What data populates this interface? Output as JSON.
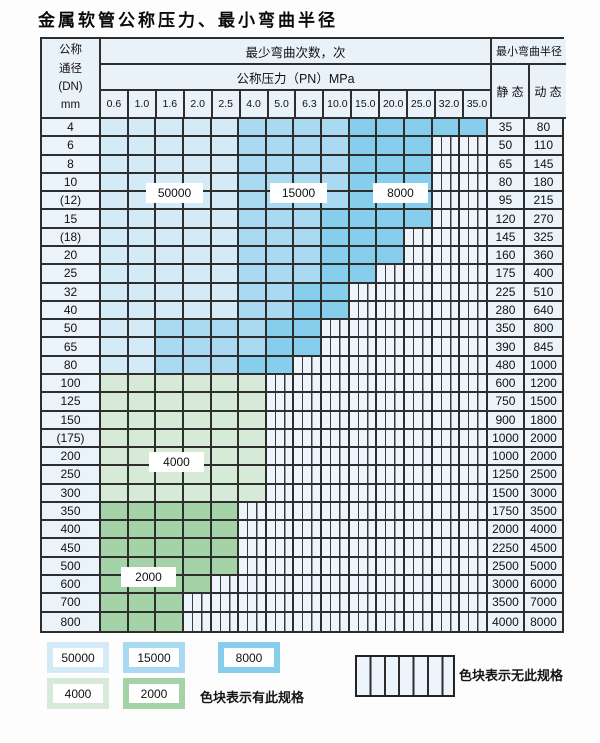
{
  "title": "金属软管公称压力、最小弯曲半径",
  "colors": {
    "50000": "#d5eaf7",
    "15000": "#aadaf1",
    "8000": "#87ceec",
    "4000": "#d7e9d7",
    "2000": "#a4d3a7",
    "hatch_bg": "#edf4fb",
    "border": "#2e2e2e",
    "header_bg": "#e9f1f9",
    "light_bg": "#eaf2fa"
  },
  "table": {
    "header": {
      "dn_lines": [
        "公称",
        "通径",
        "(DN)",
        "mm"
      ],
      "bend_cycles": "最少弯曲次数，次",
      "pressure": "公称压力（PN）MPa",
      "min_radius": "最小弯曲半径",
      "static": "静 态",
      "dynamic": "动 态",
      "pressures": [
        "0.6",
        "1.0",
        "1.6",
        "2.0",
        "2.5",
        "4.0",
        "5.0",
        "6.3",
        "10.0",
        "15.0",
        "20.0",
        "25.0",
        "32.0",
        "35.0"
      ]
    },
    "grade_order": [
      "50000",
      "15000",
      "8000",
      "4000",
      "2000",
      "none"
    ],
    "rows": [
      {
        "dn": "4",
        "counts": [
          5,
          4,
          5,
          0,
          0,
          0
        ],
        "static": "35",
        "dynamic": "80"
      },
      {
        "dn": "6",
        "counts": [
          5,
          4,
          3,
          0,
          0,
          2
        ],
        "static": "50",
        "dynamic": "110"
      },
      {
        "dn": "8",
        "counts": [
          5,
          4,
          3,
          0,
          0,
          2
        ],
        "static": "65",
        "dynamic": "145"
      },
      {
        "dn": "10",
        "counts": [
          5,
          4,
          3,
          0,
          0,
          2
        ],
        "static": "80",
        "dynamic": "180"
      },
      {
        "dn": "(12)",
        "counts": [
          5,
          4,
          3,
          0,
          0,
          2
        ],
        "static": "95",
        "dynamic": "215"
      },
      {
        "dn": "15",
        "counts": [
          5,
          3,
          4,
          0,
          0,
          2
        ],
        "static": "120",
        "dynamic": "270"
      },
      {
        "dn": "(18)",
        "counts": [
          5,
          3,
          3,
          0,
          0,
          3
        ],
        "static": "145",
        "dynamic": "325"
      },
      {
        "dn": "20",
        "counts": [
          5,
          3,
          3,
          0,
          0,
          3
        ],
        "static": "160",
        "dynamic": "360"
      },
      {
        "dn": "25",
        "counts": [
          5,
          3,
          2,
          0,
          0,
          4
        ],
        "static": "175",
        "dynamic": "400"
      },
      {
        "dn": "32",
        "counts": [
          5,
          2,
          2,
          0,
          0,
          5
        ],
        "static": "225",
        "dynamic": "510"
      },
      {
        "dn": "40",
        "counts": [
          5,
          2,
          2,
          0,
          0,
          5
        ],
        "static": "280",
        "dynamic": "640"
      },
      {
        "dn": "50",
        "counts": [
          2,
          4,
          2,
          0,
          0,
          6
        ],
        "static": "350",
        "dynamic": "800"
      },
      {
        "dn": "65",
        "counts": [
          2,
          4,
          2,
          0,
          0,
          6
        ],
        "static": "390",
        "dynamic": "845"
      },
      {
        "dn": "80",
        "counts": [
          2,
          3,
          2,
          0,
          0,
          7
        ],
        "static": "480",
        "dynamic": "1000"
      },
      {
        "dn": "100",
        "counts": [
          0,
          0,
          0,
          6,
          0,
          8
        ],
        "static": "600",
        "dynamic": "1200"
      },
      {
        "dn": "125",
        "counts": [
          0,
          0,
          0,
          6,
          0,
          8
        ],
        "static": "750",
        "dynamic": "1500"
      },
      {
        "dn": "150",
        "counts": [
          0,
          0,
          0,
          6,
          0,
          8
        ],
        "static": "900",
        "dynamic": "1800"
      },
      {
        "dn": "(175)",
        "counts": [
          0,
          0,
          0,
          6,
          0,
          8
        ],
        "static": "1000",
        "dynamic": "2000"
      },
      {
        "dn": "200",
        "counts": [
          0,
          0,
          0,
          6,
          0,
          8
        ],
        "static": "1000",
        "dynamic": "2000"
      },
      {
        "dn": "250",
        "counts": [
          0,
          0,
          0,
          6,
          0,
          8
        ],
        "static": "1250",
        "dynamic": "2500"
      },
      {
        "dn": "300",
        "counts": [
          0,
          0,
          0,
          6,
          0,
          8
        ],
        "static": "1500",
        "dynamic": "3000"
      },
      {
        "dn": "350",
        "counts": [
          0,
          0,
          0,
          0,
          5,
          9
        ],
        "static": "1750",
        "dynamic": "3500"
      },
      {
        "dn": "400",
        "counts": [
          0,
          0,
          0,
          0,
          5,
          9
        ],
        "static": "2000",
        "dynamic": "4000"
      },
      {
        "dn": "450",
        "counts": [
          0,
          0,
          0,
          0,
          5,
          9
        ],
        "static": "2250",
        "dynamic": "4500"
      },
      {
        "dn": "500",
        "counts": [
          0,
          0,
          0,
          0,
          5,
          9
        ],
        "static": "2500",
        "dynamic": "5000"
      },
      {
        "dn": "600",
        "counts": [
          0,
          0,
          0,
          0,
          4,
          10
        ],
        "static": "3000",
        "dynamic": "6000"
      },
      {
        "dn": "700",
        "counts": [
          0,
          0,
          0,
          0,
          3,
          11
        ],
        "static": "3500",
        "dynamic": "7000"
      },
      {
        "dn": "800",
        "counts": [
          0,
          0,
          0,
          0,
          3,
          11
        ],
        "static": "4000",
        "dynamic": "8000"
      }
    ]
  },
  "overlays": {
    "l50000": "50000",
    "l15000": "15000",
    "l8000": "8000",
    "l4000": "4000",
    "l2000": "2000"
  },
  "legend": {
    "items": [
      {
        "label": "50000",
        "grade": "50000"
      },
      {
        "label": "15000",
        "grade": "15000"
      },
      {
        "label": "8000",
        "grade": "8000"
      },
      {
        "label": "4000",
        "grade": "4000"
      },
      {
        "label": "2000",
        "grade": "2000"
      }
    ],
    "has_spec": "色块表示有此规格",
    "no_spec": "色块表示无此规格"
  }
}
